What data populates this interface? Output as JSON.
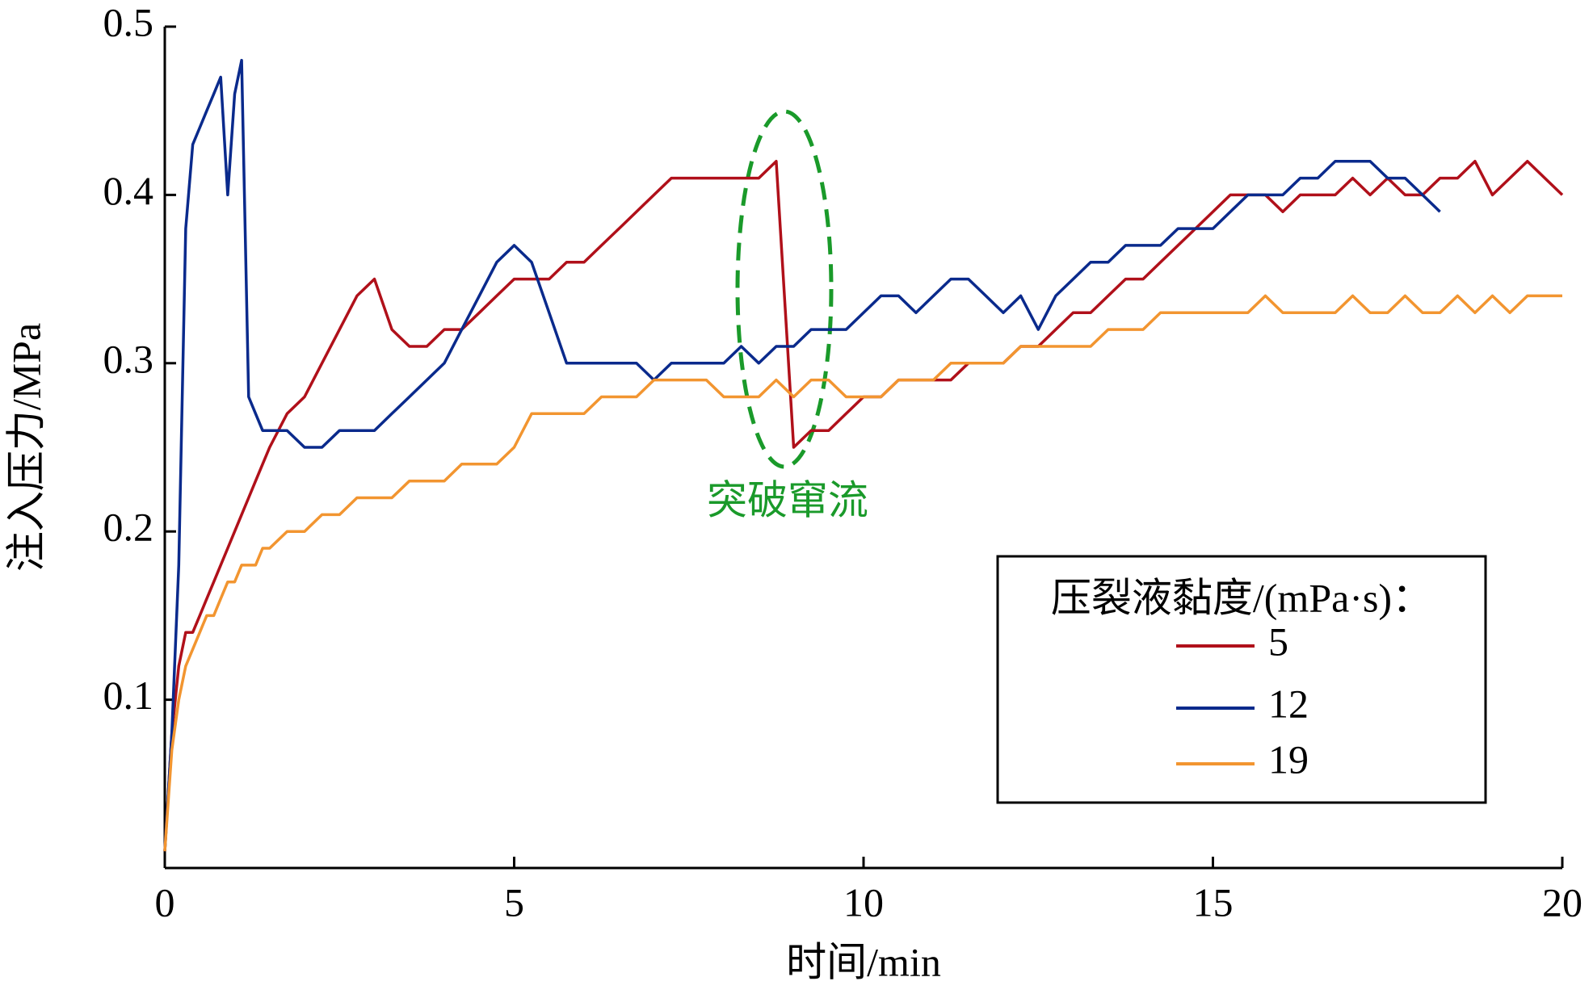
{
  "chart_data": {
    "type": "line",
    "xlabel": "时间/min",
    "ylabel": "注入压力/MPa",
    "annotation": "突破窜流",
    "legend_title": "压裂液黏度/(mPa·s)：",
    "legend": "lower right",
    "grid": false,
    "xlim": [
      0,
      20
    ],
    "ylim": [
      0,
      0.5
    ],
    "xticks": [
      0,
      5,
      10,
      15,
      20
    ],
    "yticks": [
      0.1,
      0.2,
      0.3,
      0.4,
      0.5
    ],
    "x": [
      0,
      0.1,
      0.2,
      0.3,
      0.4,
      0.5,
      0.6,
      0.7,
      0.8,
      0.9,
      1.0,
      1.1,
      1.2,
      1.3,
      1.4,
      1.5,
      1.75,
      2,
      2.25,
      2.5,
      2.75,
      3,
      3.25,
      3.5,
      3.75,
      4,
      4.25,
      4.5,
      4.75,
      5,
      5.25,
      5.5,
      5.75,
      6,
      6.25,
      6.5,
      6.75,
      7,
      7.25,
      7.5,
      7.75,
      8,
      8.25,
      8.5,
      8.75,
      9,
      9.25,
      9.5,
      9.75,
      10,
      10.25,
      10.5,
      10.75,
      11,
      11.25,
      11.5,
      11.75,
      12,
      12.25,
      12.5,
      12.75,
      13,
      13.25,
      13.5,
      13.75,
      14,
      14.25,
      14.5,
      14.75,
      15,
      15.25,
      15.5,
      15.75,
      16,
      16.25,
      16.5,
      16.75,
      17,
      17.25,
      17.5,
      17.75,
      18,
      18.25,
      18.5,
      18.75,
      19,
      19.25,
      19.5,
      19.75,
      20
    ],
    "series": [
      {
        "name": "5",
        "color": "#b0101a",
        "values": [
          0.01,
          0.08,
          0.12,
          0.14,
          0.14,
          0.15,
          0.16,
          0.17,
          0.18,
          0.19,
          0.2,
          0.21,
          0.22,
          0.23,
          0.24,
          0.25,
          0.27,
          0.28,
          0.3,
          0.32,
          0.34,
          0.35,
          0.32,
          0.31,
          0.31,
          0.32,
          0.32,
          0.33,
          0.34,
          0.35,
          0.35,
          0.35,
          0.36,
          0.36,
          0.37,
          0.38,
          0.39,
          0.4,
          0.41,
          0.41,
          0.41,
          0.41,
          0.41,
          0.41,
          0.42,
          0.25,
          0.26,
          0.26,
          0.27,
          0.28,
          0.28,
          0.29,
          0.29,
          0.29,
          0.29,
          0.3,
          0.3,
          0.3,
          0.31,
          0.31,
          0.32,
          0.33,
          0.33,
          0.34,
          0.35,
          0.35,
          0.36,
          0.37,
          0.38,
          0.39,
          0.4,
          0.4,
          0.4,
          0.39,
          0.4,
          0.4,
          0.4,
          0.41,
          0.4,
          0.41,
          0.4,
          0.4,
          0.41,
          0.41,
          0.42,
          0.4,
          0.41,
          0.42,
          0.41,
          0.4
        ]
      },
      {
        "name": "12",
        "color": "#0a2a8c",
        "values": [
          0.01,
          0.08,
          0.18,
          0.38,
          0.43,
          0.44,
          0.45,
          0.46,
          0.47,
          0.4,
          0.46,
          0.48,
          0.28,
          0.27,
          0.26,
          0.26,
          0.26,
          0.25,
          0.25,
          0.26,
          0.26,
          0.26,
          0.27,
          0.28,
          0.29,
          0.3,
          0.32,
          0.34,
          0.36,
          0.37,
          0.36,
          0.33,
          0.3,
          0.3,
          0.3,
          0.3,
          0.3,
          0.29,
          0.3,
          0.3,
          0.3,
          0.3,
          0.31,
          0.3,
          0.31,
          0.31,
          0.32,
          0.32,
          0.32,
          0.33,
          0.34,
          0.34,
          0.33,
          0.34,
          0.35,
          0.35,
          0.34,
          0.33,
          0.34,
          0.32,
          0.34,
          0.35,
          0.36,
          0.36,
          0.37,
          0.37,
          0.37,
          0.38,
          0.38,
          0.38,
          0.39,
          0.4,
          0.4,
          0.4,
          0.41,
          0.41,
          0.42,
          0.42,
          0.42,
          0.41,
          0.41,
          0.4,
          0.39,
          null,
          null,
          null,
          null,
          null,
          null,
          null
        ]
      },
      {
        "name": "19",
        "color": "#f29530",
        "values": [
          0.01,
          0.07,
          0.1,
          0.12,
          0.13,
          0.14,
          0.15,
          0.15,
          0.16,
          0.17,
          0.17,
          0.18,
          0.18,
          0.18,
          0.19,
          0.19,
          0.2,
          0.2,
          0.21,
          0.21,
          0.22,
          0.22,
          0.22,
          0.23,
          0.23,
          0.23,
          0.24,
          0.24,
          0.24,
          0.25,
          0.27,
          0.27,
          0.27,
          0.27,
          0.28,
          0.28,
          0.28,
          0.29,
          0.29,
          0.29,
          0.29,
          0.28,
          0.28,
          0.28,
          0.29,
          0.28,
          0.29,
          0.29,
          0.28,
          0.28,
          0.28,
          0.29,
          0.29,
          0.29,
          0.3,
          0.3,
          0.3,
          0.3,
          0.31,
          0.31,
          0.31,
          0.31,
          0.31,
          0.32,
          0.32,
          0.32,
          0.33,
          0.33,
          0.33,
          0.33,
          0.33,
          0.33,
          0.34,
          0.33,
          0.33,
          0.33,
          0.33,
          0.34,
          0.33,
          0.33,
          0.34,
          0.33,
          0.33,
          0.34,
          0.33,
          0.34,
          0.33,
          0.34,
          0.34,
          0.34
        ]
      }
    ]
  }
}
